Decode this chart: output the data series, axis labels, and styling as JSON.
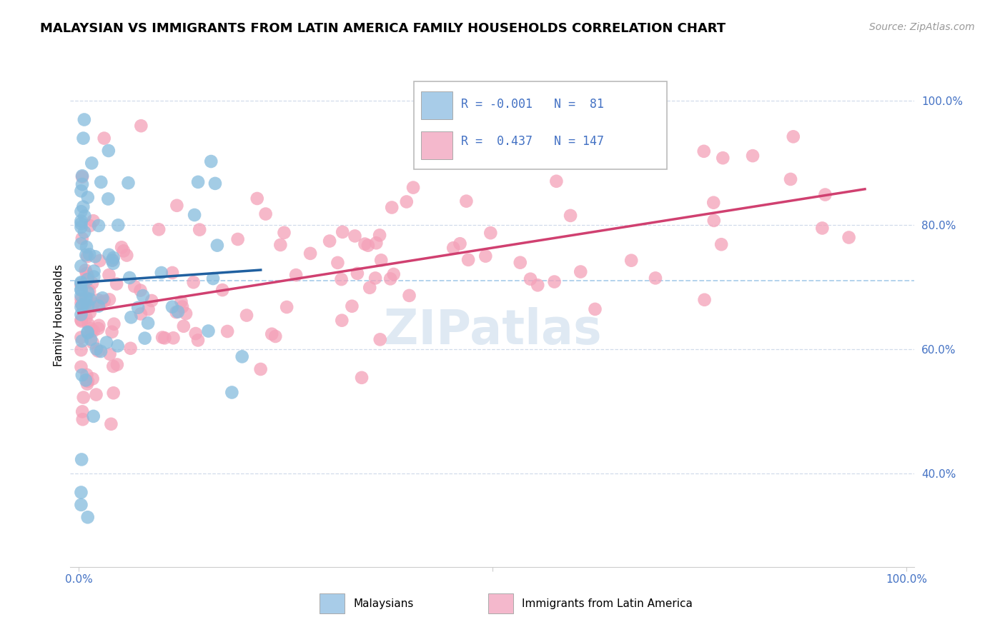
{
  "title": "MALAYSIAN VS IMMIGRANTS FROM LATIN AMERICA FAMILY HOUSEHOLDS CORRELATION CHART",
  "source": "Source: ZipAtlas.com",
  "ylabel": "Family Households",
  "color_blue": "#85bbdd",
  "color_pink": "#f4a0b8",
  "color_blue_line": "#2060a0",
  "color_pink_line": "#d04070",
  "color_blue_legend_box": "#a8cce8",
  "color_pink_legend_box": "#f4b8cc",
  "color_dashed": "#a0c8e8",
  "watermark_color": "#c5d8ea",
  "grid_color": "#ccd8e8",
  "spine_color": "#cccccc",
  "tick_color": "#4472c4",
  "title_fontsize": 13,
  "source_fontsize": 10,
  "axis_tick_fontsize": 11,
  "legend_fontsize": 12,
  "ylabel_fontsize": 11,
  "watermark_fontsize": 48,
  "scatter_size": 180,
  "scatter_alpha": 0.75,
  "xlim": [
    -0.01,
    1.01
  ],
  "ylim": [
    0.25,
    1.06
  ],
  "yticks": [
    0.4,
    0.6,
    0.8,
    1.0
  ],
  "ytick_labels": [
    "40.0%",
    "60.0%",
    "80.0%",
    "100.0%"
  ],
  "xticks": [
    0.0,
    0.5,
    1.0
  ],
  "xtick_labels": [
    "0.0%",
    "",
    "100.0%"
  ],
  "legend_r1": "-0.001",
  "legend_n1": "81",
  "legend_r2": "0.437",
  "legend_n2": "147"
}
